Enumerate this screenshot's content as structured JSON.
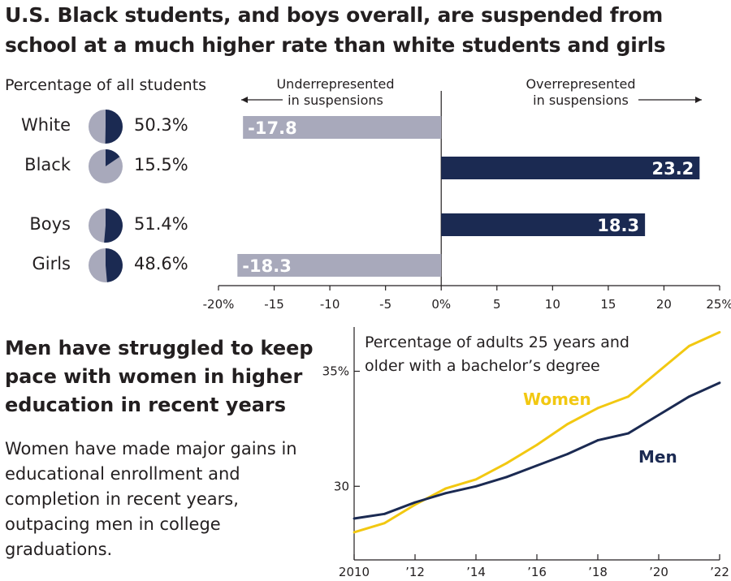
{
  "header": {
    "title": "U.S. Black students, and boys overall, are suspended from school at a much higher rate than white students and girls",
    "pct_header": "Percentage of all students",
    "under_note": "Underrepresented\nin suspensions",
    "over_note": "Overrepresented\nin suspensions"
  },
  "colors": {
    "navy": "#1b2a52",
    "gray": "#a8a9bb",
    "gold": "#f2c811",
    "axis": "#231f20"
  },
  "groups": [
    {
      "label": "White",
      "share": "50.3%",
      "share_value": 50.3,
      "diff": -17.8,
      "diff_label": "-17.8"
    },
    {
      "label": "Black",
      "share": "15.5%",
      "share_value": 15.5,
      "diff": 23.2,
      "diff_label": "23.2"
    },
    {
      "label": "Boys",
      "share": "51.4%",
      "share_value": 51.4,
      "diff": 18.3,
      "diff_label": "18.3"
    },
    {
      "label": "Girls",
      "share": "48.6%",
      "share_value": 48.6,
      "diff": -18.3,
      "diff_label": "-18.3"
    }
  ],
  "section2": {
    "title": "Men have struggled to keep pace with women in higher education in recent years",
    "body": "Women have made major gains in educational enrollment and completion in recent years, outpacing men in college graduations."
  },
  "chart_data": [
    {
      "type": "bar",
      "orientation": "horizontal",
      "categories": [
        "White",
        "Black",
        "Boys",
        "Girls"
      ],
      "values": [
        -17.8,
        23.2,
        18.3,
        -18.3
      ],
      "xlim": [
        -20,
        25
      ],
      "xticks": [
        "-20%",
        "-15",
        "-10",
        "-5",
        "0%",
        "5",
        "10",
        "15",
        "20",
        "25%"
      ],
      "xtick_values": [
        -20,
        -15,
        -10,
        -5,
        0,
        5,
        10,
        15,
        20,
        25
      ]
    },
    {
      "type": "line",
      "title": "Percentage of adults 25 years and older with a bachelor’s degree",
      "x": [
        2010,
        2011,
        2012,
        2013,
        2014,
        2015,
        2016,
        2017,
        2018,
        2019,
        2020,
        2021,
        2022
      ],
      "xticks": [
        "2010",
        "’12",
        "’14",
        "’16",
        "’18",
        "’20",
        "’22"
      ],
      "xtick_values": [
        2010,
        2012,
        2014,
        2016,
        2018,
        2020,
        2022
      ],
      "yticks": [
        "30",
        "35%"
      ],
      "ytick_values": [
        30,
        35
      ],
      "ylim": [
        26.8,
        37.1
      ],
      "series": [
        {
          "name": "Women",
          "values": [
            28.0,
            28.4,
            29.2,
            29.9,
            30.3,
            31.0,
            31.8,
            32.7,
            33.4,
            33.9,
            35.0,
            36.1,
            36.7
          ]
        },
        {
          "name": "Men",
          "values": [
            28.6,
            28.8,
            29.3,
            29.7,
            30.0,
            30.4,
            30.9,
            31.4,
            32.0,
            32.3,
            33.1,
            33.9,
            34.5
          ]
        }
      ]
    }
  ]
}
